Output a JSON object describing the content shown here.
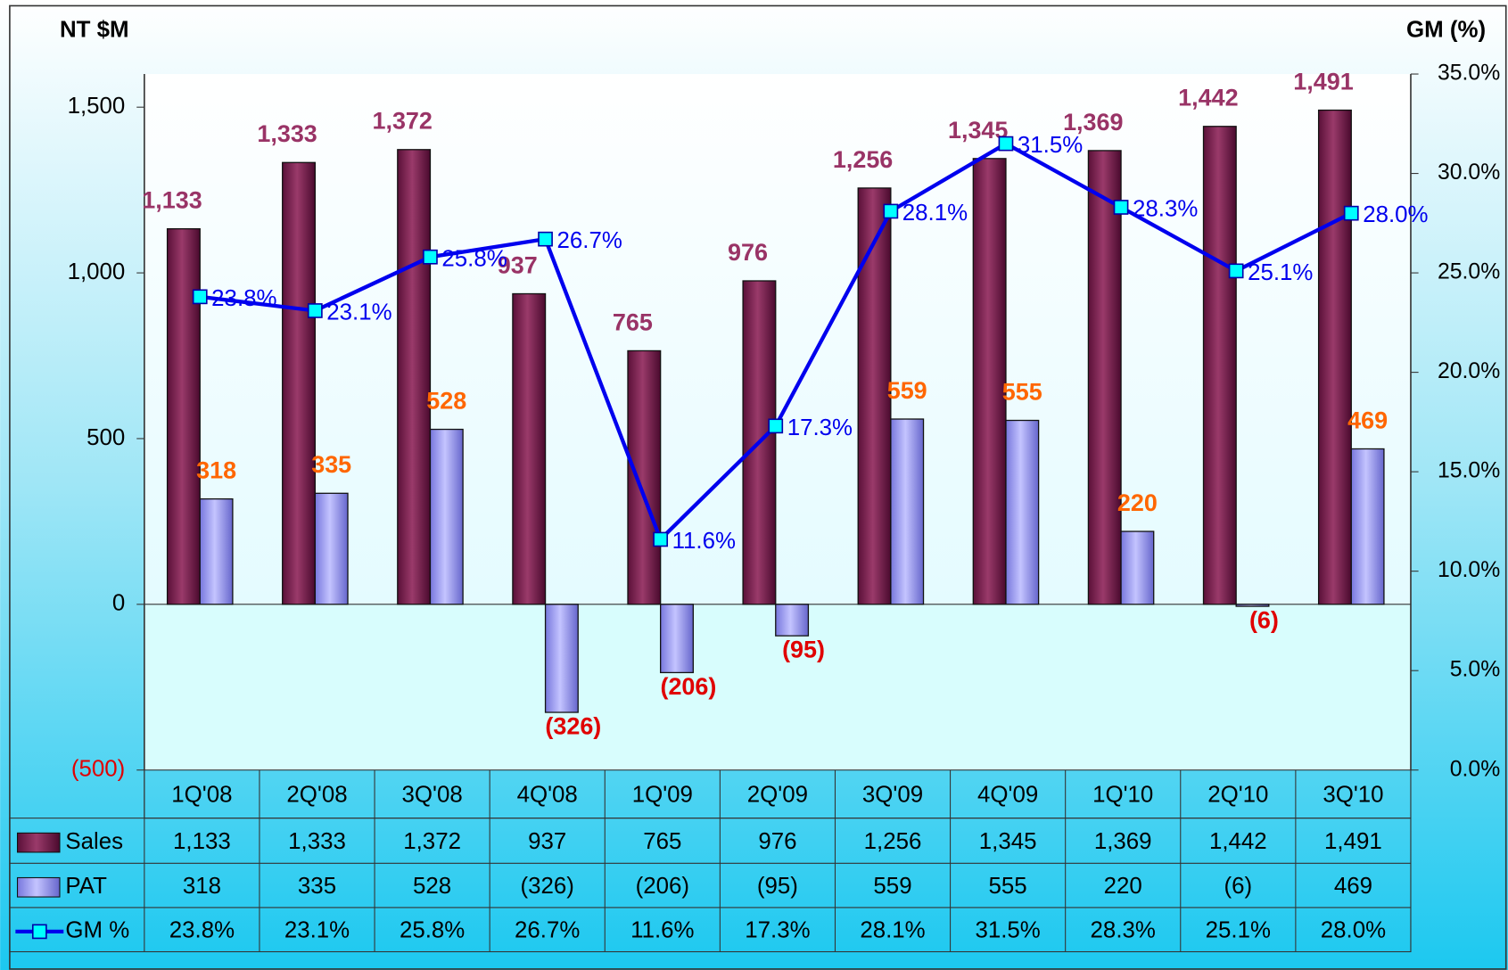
{
  "chart_data": {
    "type": "bar_line_table",
    "y_axis_title": "NT $M",
    "y2_axis_title": "GM (%)",
    "categories": [
      "1Q'08",
      "2Q'08",
      "3Q'08",
      "4Q'08",
      "1Q'09",
      "2Q'09",
      "3Q'09",
      "4Q'09",
      "1Q'10",
      "2Q'10",
      "3Q'10"
    ],
    "ylim": [
      -500,
      1600
    ],
    "yticks": [
      {
        "value": -500,
        "label": "(500)"
      },
      0,
      500,
      {
        "value": 1000,
        "label": "1,000"
      },
      {
        "value": 1500,
        "label": "1,500"
      }
    ],
    "y2lim": [
      0,
      35
    ],
    "y2ticks": [
      {
        "value": 0,
        "label": "0.0%"
      },
      {
        "value": 5,
        "label": "5.0%"
      },
      {
        "value": 10,
        "label": "10.0%"
      },
      {
        "value": 15,
        "label": "15.0%"
      },
      {
        "value": 20,
        "label": "20.0%"
      },
      {
        "value": 25,
        "label": "25.0%"
      },
      {
        "value": 30,
        "label": "30.0%"
      },
      {
        "value": 35,
        "label": "35.0%"
      }
    ],
    "series": [
      {
        "name": "Sales",
        "type": "bar",
        "color": "#7a1f4e",
        "values": [
          1133,
          1333,
          1372,
          937,
          765,
          976,
          1256,
          1345,
          1369,
          1442,
          1491
        ],
        "value_labels": [
          "1,133",
          "1,333",
          "1,372",
          "937",
          "765",
          "976",
          "1,256",
          "1,345",
          "1,369",
          "1,442",
          "1,491"
        ]
      },
      {
        "name": "PAT",
        "type": "bar",
        "color": "#9999ff",
        "values": [
          318,
          335,
          528,
          -326,
          -206,
          -95,
          559,
          555,
          220,
          -6,
          469
        ],
        "value_labels": [
          "318",
          "335",
          "528",
          "(326)",
          "(206)",
          "(95)",
          "559",
          "555",
          "220",
          "(6)",
          "469"
        ]
      },
      {
        "name": "GM %",
        "type": "line",
        "axis": "y2",
        "color": "#0000ee",
        "values": [
          23.8,
          23.1,
          25.8,
          26.7,
          11.6,
          17.3,
          28.1,
          31.5,
          28.3,
          25.1,
          28.0
        ],
        "value_labels": [
          "23.8%",
          "23.1%",
          "25.8%",
          "26.7%",
          "11.6%",
          "17.3%",
          "28.1%",
          "31.5%",
          "28.3%",
          "25.1%",
          "28.0%"
        ]
      }
    ]
  }
}
